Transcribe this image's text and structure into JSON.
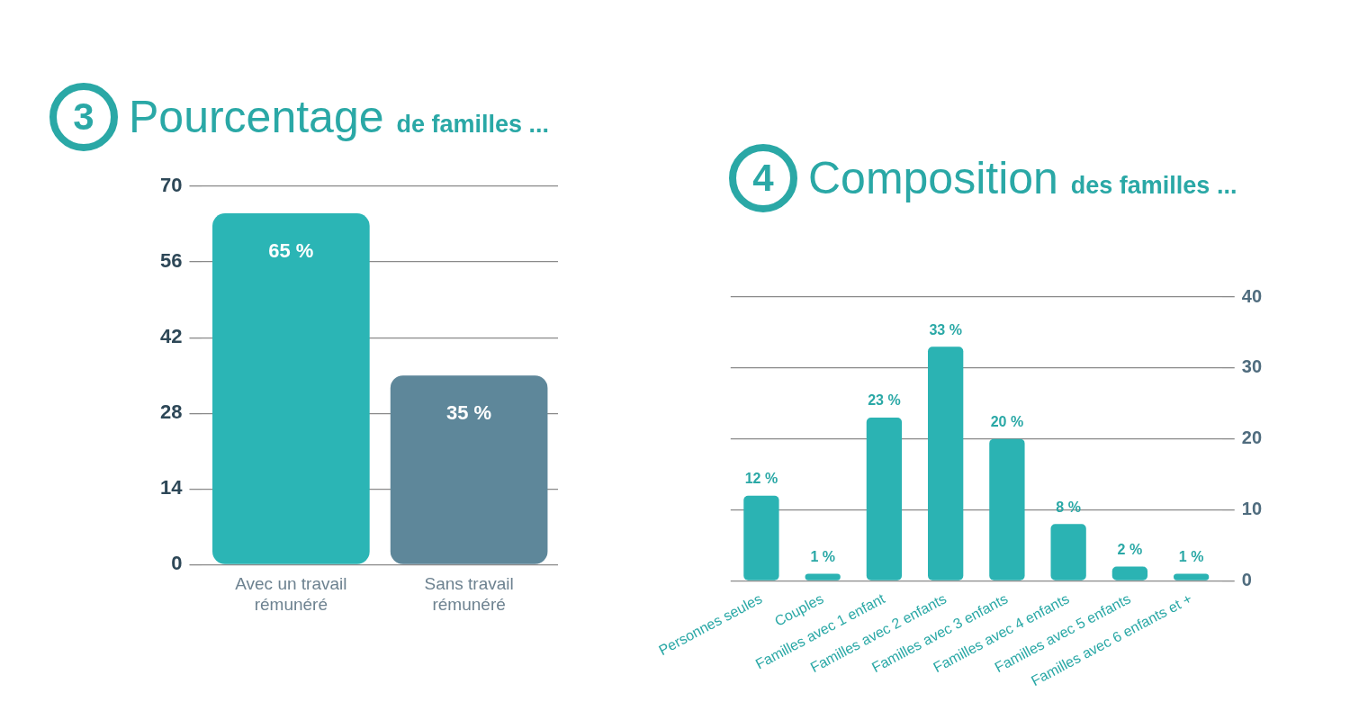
{
  "chart_data": [
    {
      "type": "bar",
      "title": "Pourcentage de familles ...",
      "annotations": [
        "3"
      ],
      "categories": [
        "Avec un travail rémunéré",
        "Sans travail rémunéré"
      ],
      "values": [
        65,
        35
      ],
      "colors": [
        "#2bb5b5",
        "#5e879a"
      ],
      "value_labels": [
        "65 %",
        "35 %"
      ],
      "ylim": [
        0,
        70
      ],
      "yticks": [
        0,
        14,
        28,
        42,
        56,
        70
      ],
      "grid": "y"
    },
    {
      "type": "bar",
      "title": "Composition des familles ...",
      "annotations": [
        "4"
      ],
      "categories": [
        "Personnes seules",
        "Couples",
        "Familles avec 1 enfant",
        "Familles avec 2 enfants",
        "Familles avec 3 enfants",
        "Familles avec 4 enfants",
        "Familles avec 5 enfants",
        "Familles avec 6 enfants et +"
      ],
      "values": [
        12,
        1,
        23,
        33,
        20,
        8,
        2,
        1
      ],
      "color": "#2bb3b3",
      "value_labels": [
        "12 %",
        "1 %",
        "23 %",
        "33 %",
        "20 %",
        "8 %",
        "2 %",
        "1 %"
      ],
      "ylim": [
        0,
        40
      ],
      "yticks": [
        0,
        10,
        20,
        30,
        40
      ],
      "grid": "y"
    }
  ]
}
